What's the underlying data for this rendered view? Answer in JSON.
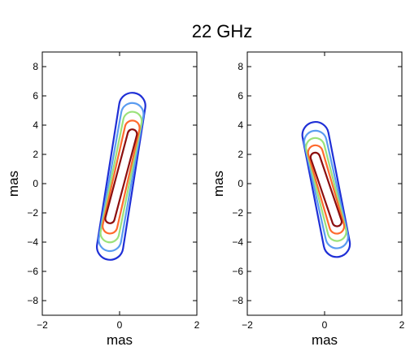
{
  "chart_data": {
    "type": "contour",
    "title": "22 GHz",
    "panels": [
      {
        "xlabel": "mas",
        "ylabel": "mas",
        "xlim": [
          -2,
          2
        ],
        "ylim": [
          -9,
          9
        ],
        "xticks": [
          -2,
          0,
          2
        ],
        "yticks": [
          -8,
          -6,
          -4,
          -2,
          0,
          2,
          4,
          6,
          8
        ],
        "grid": false,
        "tilt": "left",
        "contours": [
          {
            "level": 1,
            "color": "#1f2fd6",
            "upper_end": [
              0.38,
              6.2
            ],
            "lower_end": [
              -0.3,
              -5.2
            ],
            "half_width": 0.34
          },
          {
            "level": 2,
            "color": "#5a9cf0",
            "upper_end": [
              0.38,
              5.5
            ],
            "lower_end": [
              -0.3,
              -4.6
            ],
            "half_width": 0.29
          },
          {
            "level": 3,
            "color": "#9be27a",
            "upper_end": [
              0.38,
              4.9
            ],
            "lower_end": [
              -0.3,
              -4.0
            ],
            "half_width": 0.24
          },
          {
            "level": 4,
            "color": "#ff6a2e",
            "upper_end": [
              0.37,
              4.3
            ],
            "lower_end": [
              -0.29,
              -3.4
            ],
            "half_width": 0.19
          },
          {
            "level": 5,
            "color": "#8c0f0f",
            "upper_end": [
              0.36,
              3.7
            ],
            "lower_end": [
              -0.28,
              -2.7
            ],
            "half_width": 0.12
          }
        ]
      },
      {
        "xlabel": "mas",
        "ylabel": "mas",
        "xlim": [
          -2,
          2
        ],
        "ylim": [
          -9,
          9
        ],
        "xticks": [
          -2,
          0,
          2
        ],
        "yticks": [
          -8,
          -6,
          -4,
          -2,
          0,
          2,
          4,
          6,
          8
        ],
        "grid": false,
        "tilt": "right",
        "contours": [
          {
            "level": 1,
            "color": "#1f2fd6",
            "upper_end": [
              -0.3,
              4.2
            ],
            "lower_end": [
              0.38,
              -5.0
            ],
            "half_width": 0.34
          },
          {
            "level": 2,
            "color": "#5a9cf0",
            "upper_end": [
              -0.3,
              3.6
            ],
            "lower_end": [
              0.38,
              -4.4
            ],
            "half_width": 0.29
          },
          {
            "level": 3,
            "color": "#9be27a",
            "upper_end": [
              -0.3,
              3.1
            ],
            "lower_end": [
              0.38,
              -3.9
            ],
            "half_width": 0.24
          },
          {
            "level": 4,
            "color": "#ff6a2e",
            "upper_end": [
              -0.29,
              2.6
            ],
            "lower_end": [
              0.37,
              -3.4
            ],
            "half_width": 0.19
          },
          {
            "level": 5,
            "color": "#8c0f0f",
            "upper_end": [
              -0.28,
              2.1
            ],
            "lower_end": [
              0.36,
              -2.9
            ],
            "half_width": 0.12
          }
        ]
      }
    ]
  }
}
